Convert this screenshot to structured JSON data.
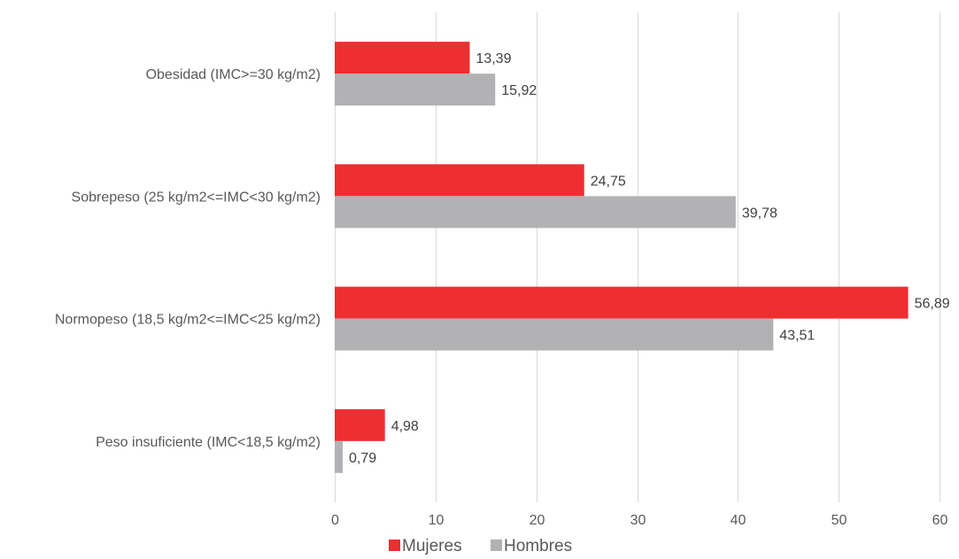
{
  "chart_data": {
    "type": "bar",
    "orientation": "horizontal",
    "title": "",
    "xlabel": "",
    "ylabel": "",
    "categories": [
      "Peso insuficiente (IMC<18,5 kg/m2)",
      "Normopeso (18,5 kg/m2<=IMC<25 kg/m2)",
      "Sobrepeso (25 kg/m2<=IMC<30 kg/m2)",
      "Obesidad (IMC>=30 kg/m2)"
    ],
    "series": [
      {
        "name": "Mujeres",
        "color": "#ee2e31",
        "values": [
          4.98,
          56.89,
          24.75,
          13.39
        ],
        "labels": [
          "4,98",
          "56,89",
          "24,75",
          "13,39"
        ]
      },
      {
        "name": "Hombres",
        "color": "#b2b2b4",
        "values": [
          0.79,
          43.51,
          39.78,
          15.92
        ],
        "labels": [
          "0,79",
          "43,51",
          "39,78",
          "15,92"
        ]
      }
    ],
    "xlim": [
      0,
      60
    ],
    "xticks": [
      0,
      10,
      20,
      30,
      40,
      50,
      60
    ],
    "xtick_labels": [
      "0",
      "10",
      "20",
      "30",
      "40",
      "50",
      "60"
    ],
    "grid": true,
    "legend_position": "bottom"
  }
}
